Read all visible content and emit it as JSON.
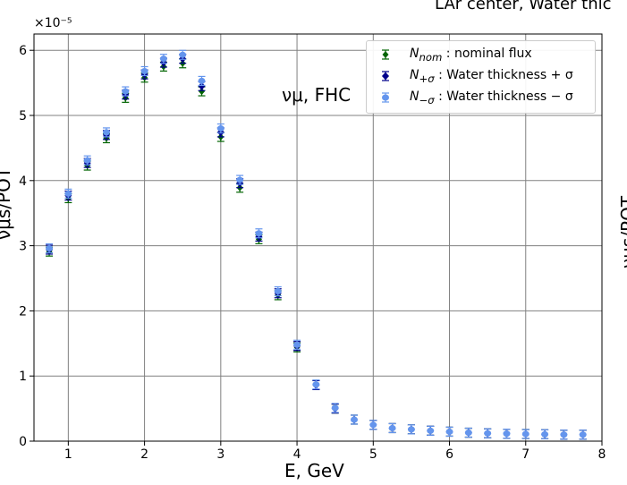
{
  "header": {
    "title_fragment": "LAr center, Water thic"
  },
  "annotation": "νμ, FHC",
  "right_panel_ylabel": "νμs/POT",
  "chart_data": {
    "type": "scatter",
    "title": "LAr center, Water thic",
    "xlabel": "E, GeV",
    "ylabel": "νμs/POT",
    "y_multiplier": "×10⁻⁵",
    "xlim": [
      0.55,
      8.0
    ],
    "ylim": [
      0,
      6.25
    ],
    "x_ticks": [
      "1",
      "2",
      "3",
      "4",
      "5",
      "6",
      "7",
      "8"
    ],
    "y_ticks": [
      "0",
      "1",
      "2",
      "3",
      "4",
      "5",
      "6"
    ],
    "grid": true,
    "legend_position": "top-right",
    "x": [
      0.75,
      1.0,
      1.25,
      1.5,
      1.75,
      2.0,
      2.25,
      2.5,
      2.75,
      3.0,
      3.25,
      3.5,
      3.75,
      4.0,
      4.25,
      4.5,
      4.75,
      5.0,
      5.25,
      5.5,
      5.75,
      6.0,
      6.25,
      6.5,
      6.75,
      7.0,
      7.25,
      7.5,
      7.75
    ],
    "series": [
      {
        "name": "N_nom : nominal flux",
        "label_main": "N",
        "label_sub": "nom",
        "label_rest": " : nominal flux",
        "color": "#006400",
        "values": [
          2.91,
          3.73,
          4.23,
          4.65,
          5.27,
          5.58,
          5.75,
          5.8,
          5.37,
          4.67,
          3.89,
          3.1,
          2.24,
          1.44,
          0.86,
          0.5,
          0.33,
          0.25,
          0.2,
          0.18,
          0.16,
          0.145,
          0.13,
          0.12,
          0.115,
          0.11,
          0.105,
          0.1,
          0.1
        ]
      },
      {
        "name": "N_+σ : Water thickness + σ",
        "label_main": "N",
        "label_sub": "+σ",
        "label_rest": " : Water thickness + σ",
        "color": "#00008b",
        "values": [
          2.94,
          3.77,
          4.27,
          4.7,
          5.32,
          5.63,
          5.81,
          5.87,
          5.45,
          4.74,
          3.96,
          3.14,
          2.27,
          1.46,
          0.86,
          0.5,
          0.33,
          0.25,
          0.2,
          0.18,
          0.16,
          0.145,
          0.13,
          0.12,
          0.115,
          0.11,
          0.105,
          0.1,
          0.1
        ]
      },
      {
        "name": "N_−σ : Water thickness − σ",
        "label_main": "N",
        "label_sub": "−σ",
        "label_rest": " : Water thickness − σ",
        "color": "#6495ed",
        "values": [
          2.96,
          3.8,
          4.31,
          4.74,
          5.37,
          5.68,
          5.87,
          5.93,
          5.53,
          4.8,
          4.01,
          3.19,
          2.3,
          1.48,
          0.87,
          0.51,
          0.33,
          0.25,
          0.2,
          0.18,
          0.16,
          0.145,
          0.13,
          0.12,
          0.115,
          0.11,
          0.105,
          0.1,
          0.1
        ]
      }
    ]
  }
}
